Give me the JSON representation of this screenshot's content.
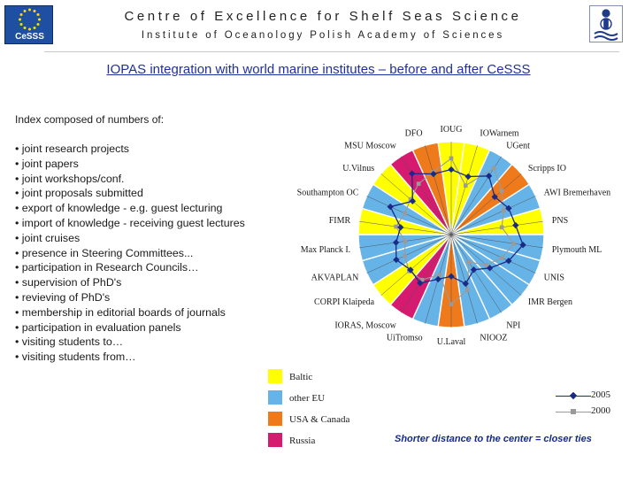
{
  "header": {
    "title": "Centre of Excellence for Shelf Seas Science",
    "subtitle": "Institute of Oceanology Polish Academy of Sciences",
    "logo_left_text": "CeSSS",
    "logo_right_icon": "iopas-logo-icon",
    "logo_left_icon": "eu-stars-logo-icon"
  },
  "main_title": "IOPAS integration with world marine institutes – before and after CeSSS",
  "intro": "Index composed of numbers of:",
  "bullets": [
    "joint research projects",
    "joint papers",
    "joint workshops/conf.",
    "joint proposals submitted",
    "export of knowledge - e.g. guest lecturing",
    "import of knowledge - receiving guest lectures",
    "joint cruises",
    "presence in Steering Committees...",
    "participation in Research Councils…",
    "supervision of PhD's",
    "revieving of PhD's",
    "membership in editorial boards of journals",
    "participation in evaluation panels",
    "visiting students to…",
    "visiting students from…"
  ],
  "footnote": "Shorter distance to the center = closer ties",
  "colors": {
    "Baltic": "#ffff00",
    "other EU": "#66b3e8",
    "USA & Canada": "#ee7a1c",
    "Russia": "#d61a70",
    "series_2005": "#1a2b86",
    "series_2000": "#9a9a9a"
  },
  "chart_data": {
    "type": "radar",
    "range": [
      0,
      1
    ],
    "categories": [
      "IOUG",
      "IOWarnem",
      "UGent",
      "Scripps IO",
      "AWI Bremerhaven",
      "PNS",
      "Plymouth ML",
      "UNIS",
      "IMR Bergen",
      "NPI",
      "NIOOZ",
      "U.Laval",
      "UiTromso",
      "IORAS, Moscow",
      "CORPI Klaipeda",
      "AKVAPLAN",
      "Max Planck I.",
      "FIMR",
      "Southampton OC",
      "U.Vilnus",
      "MSU Moscow",
      "DFO"
    ],
    "regions": [
      "Baltic",
      "Baltic",
      "other EU",
      "USA & Canada",
      "other EU",
      "Baltic",
      "other EU",
      "other EU",
      "other EU",
      "other EU",
      "other EU",
      "USA & Canada",
      "other EU",
      "Russia",
      "Baltic",
      "other EU",
      "other EU",
      "Baltic",
      "other EU",
      "Baltic",
      "Russia",
      "USA & Canada"
    ],
    "legend": [
      {
        "name": "Baltic"
      },
      {
        "name": "other EU"
      },
      {
        "name": "USA & Canada"
      },
      {
        "name": "Russia"
      }
    ],
    "series": [
      {
        "name": "2005",
        "values": [
          0.7,
          0.65,
          0.75,
          0.62,
          0.68,
          0.7,
          0.78,
          0.68,
          0.55,
          0.45,
          0.55,
          0.45,
          0.5,
          0.62,
          0.58,
          0.65,
          0.6,
          0.55,
          0.72,
          0.55,
          0.78,
          0.68
        ]
      },
      {
        "name": "2000",
        "values": [
          0.82,
          0.55,
          0.85,
          0.72,
          0.62,
          0.55,
          0.68,
          0.6,
          0.5,
          0.35,
          0.62,
          0.75,
          0.45,
          0.58,
          0.6,
          0.55,
          0.5,
          0.6,
          0.55,
          0.58,
          0.65,
          0.7
        ]
      }
    ]
  }
}
